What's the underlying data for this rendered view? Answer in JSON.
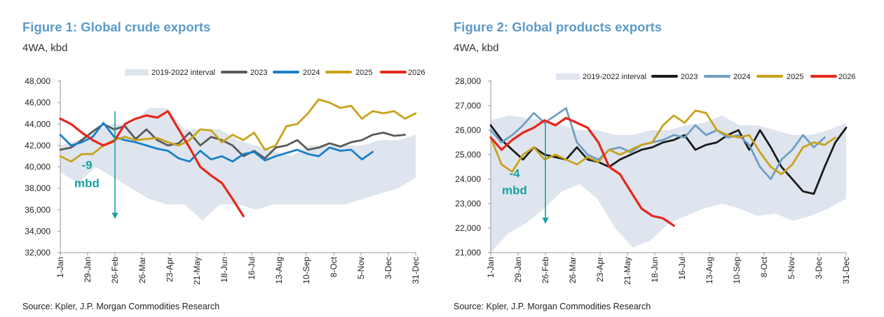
{
  "colors": {
    "band": "#dfe5ee",
    "y2023_fig1": "#5a5a5a",
    "y2023_fig2": "#1a1a1a",
    "y2024_fig1": "#1a7fc8",
    "y2024_fig2": "#6f9ec2",
    "y2025": "#c8a21a",
    "y2026": "#e8261c",
    "annotation": "#17a2a0",
    "axis": "#999999"
  },
  "figures": [
    {
      "title": "Figure 1: Global crude exports",
      "subtitle": "4WA, kbd",
      "source": "Source: Kpler, J.P. Morgan Commodities Research",
      "chart_data": {
        "type": "line",
        "title": "Figure 1: Global crude exports",
        "ylabel": "4WA, kbd",
        "xlabel": "",
        "ylim": [
          32000,
          48000
        ],
        "yticks": [
          32000,
          34000,
          36000,
          38000,
          40000,
          42000,
          44000,
          46000,
          48000
        ],
        "yticklabels": [
          "32,000",
          "34,000",
          "36,000",
          "38,000",
          "40,000",
          "42,000",
          "44,000",
          "46,000",
          "48,000"
        ],
        "xticklabels": [
          "1-Jan",
          "29-Jan",
          "26-Feb",
          "26-Mar",
          "23-Apr",
          "21-May",
          "18-Jun",
          "16-Jul",
          "13-Aug",
          "10-Sep",
          "8-Oct",
          "5-Nov",
          "3-Dec",
          "31-Dec"
        ],
        "legend": [
          "2019-2022 interval",
          "2023",
          "2024",
          "2025",
          "2026"
        ],
        "legend_position": "top",
        "series": [
          {
            "name": "2019-2022 interval",
            "kind": "band",
            "low": [
              39500,
              38500,
              40000,
              39000,
              38000,
              37000,
              36500,
              36500,
              35000,
              36500,
              36500,
              36000,
              36500,
              36500,
              36500,
              36500,
              36500,
              37000,
              37500,
              38000,
              39000
            ],
            "high": [
              42000,
              42500,
              43500,
              44000,
              44000,
              45500,
              45500,
              43500,
              43500,
              43500,
              42500,
              42000,
              41500,
              41000,
              42000,
              42000,
              42000,
              42000,
              42500,
              42500,
              43000
            ]
          },
          {
            "name": "2023",
            "kind": "line",
            "values": [
              41600,
              41800,
              42500,
              43300,
              44000,
              43500,
              43800,
              42600,
              43500,
              42500,
              42000,
              42200,
              43200,
              42000,
              42800,
              42500,
              42000,
              41000,
              41500,
              40800,
              41800,
              42000,
              42500,
              41600,
              41800,
              42200,
              41900,
              42300,
              42500,
              43000,
              43200,
              42900,
              43000
            ]
          },
          {
            "name": "2024",
            "kind": "line",
            "values": [
              43000,
              42000,
              42300,
              42800,
              44100,
              42800,
              42500,
              42300,
              42000,
              41700,
              41500,
              40800,
              40500,
              41500,
              40700,
              41000,
              40500,
              41200,
              41400,
              40600,
              41000,
              41300,
              41600,
              41200,
              41000,
              41800,
              41500,
              41600,
              40700,
              41400
            ]
          },
          {
            "name": "2025",
            "kind": "line",
            "values": [
              41000,
              40500,
              41200,
              41200,
              42000,
              42500,
              42800,
              42500,
              42600,
              42700,
              42300,
              42000,
              42500,
              43500,
              43400,
              42300,
              43000,
              42500,
              43200,
              41600,
              42000,
              43800,
              44000,
              45000,
              46300,
              46000,
              45500,
              45700,
              44500,
              45200,
              45000,
              45200,
              44500,
              45000
            ]
          },
          {
            "name": "2026",
            "kind": "line",
            "values": [
              44500,
              44000,
              43200,
              42500,
              42000,
              42400,
              44000,
              44500,
              44800,
              44600,
              45200,
              43500,
              41800,
              40000,
              39200,
              38500,
              37000,
              35400
            ]
          }
        ],
        "annotations": [
          {
            "text_value": "-9",
            "text_unit": "mbd",
            "kind": "down-arrow",
            "from_x": "26-Feb",
            "from_y": 45200,
            "to_y": 35200
          }
        ]
      }
    },
    {
      "title": "Figure 2: Global products exports",
      "subtitle": "4WA, kbd",
      "source": "Source: Kpler, J.P. Morgan Commodities Research",
      "chart_data": {
        "type": "line",
        "title": "Figure 2: Global products exports",
        "ylabel": "4WA, kbd",
        "xlabel": "",
        "ylim": [
          21000,
          28000
        ],
        "yticks": [
          21000,
          22000,
          23000,
          24000,
          25000,
          26000,
          27000,
          28000
        ],
        "yticklabels": [
          "21,000",
          "22,000",
          "23,000",
          "24,000",
          "25,000",
          "26,000",
          "27,000",
          "28,000"
        ],
        "xticklabels": [
          "1-Jan",
          "29-Jan",
          "26-Feb",
          "26-Mar",
          "23-Apr",
          "21-May",
          "18-Jun",
          "16-Jul",
          "13-Aug",
          "10-Sep",
          "8-Oct",
          "5-Nov",
          "3-Dec",
          "31-Dec"
        ],
        "legend": [
          "2019-2022 interval",
          "2023",
          "2024",
          "2025",
          "2026"
        ],
        "legend_position": "top",
        "series": [
          {
            "name": "2019-2022 interval",
            "kind": "band",
            "low": [
              21000,
              21800,
              22200,
              22800,
              23500,
              23800,
              23200,
              22000,
              21200,
              21500,
              22200,
              22500,
              22800,
              23000,
              22800,
              22500,
              22600,
              22300,
              22500,
              22800,
              23200
            ],
            "high": [
              26400,
              26600,
              26500,
              26400,
              26200,
              26000,
              26000,
              25800,
              25800,
              26000,
              26000,
              26200,
              26300,
              26600,
              26200,
              26200,
              26000,
              25800,
              25800,
              26000,
              26300
            ]
          },
          {
            "name": "2023",
            "kind": "line",
            "values": [
              26200,
              25600,
              25200,
              24800,
              25300,
              25000,
              24900,
              24800,
              25300,
              24800,
              24700,
              24500,
              24800,
              25000,
              25200,
              25300,
              25500,
              25600,
              25800,
              25200,
              25400,
              25500,
              25800,
              26000,
              25200,
              26000,
              25300,
              24500,
              24000,
              23500,
              23400,
              24500,
              25500,
              26100
            ]
          },
          {
            "name": "2024",
            "kind": "line",
            "values": [
              26000,
              25500,
              25800,
              26200,
              26700,
              26300,
              26600,
              26900,
              25500,
              25000,
              24800,
              25200,
              25300,
              25100,
              25400,
              25500,
              25600,
              25800,
              25700,
              26200,
              25800,
              26000,
              25700,
              25800,
              25400,
              24500,
              24000,
              24800,
              25200,
              25800,
              25300,
              25700
            ]
          },
          {
            "name": "2025",
            "kind": "line",
            "values": [
              25700,
              24600,
              24300,
              25000,
              25300,
              24800,
              25000,
              24800,
              24600,
              24900,
              24700,
              25200,
              25000,
              25200,
              25400,
              25500,
              26200,
              26600,
              26300,
              26800,
              26700,
              26000,
              25800,
              25700,
              25800,
              25100,
              24500,
              24200,
              24600,
              25300,
              25500,
              25400,
              25700
            ]
          },
          {
            "name": "2026",
            "kind": "line",
            "values": [
              25700,
              25200,
              25600,
              25900,
              26100,
              26400,
              26200,
              26500,
              26300,
              26100,
              25500,
              24500,
              24200,
              23500,
              22800,
              22500,
              22400,
              22100
            ]
          }
        ],
        "annotations": [
          {
            "text_value": "-4",
            "text_unit": "mbd",
            "kind": "down-arrow",
            "from_x": "26-Feb",
            "from_y": 26300,
            "to_y": 22200
          }
        ]
      }
    }
  ]
}
